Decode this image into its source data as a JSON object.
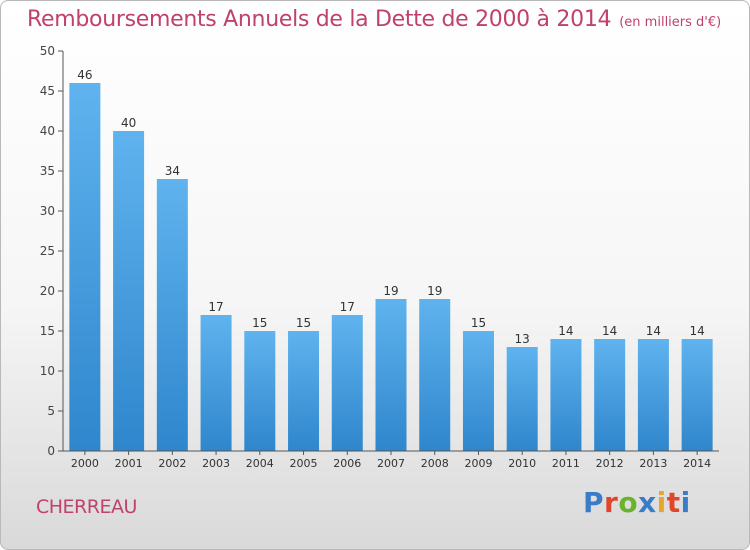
{
  "chart_data": {
    "type": "bar",
    "title": "Remboursements Annuels de la Dette de 2000 à 2014",
    "unit_label": "(en milliers d'€)",
    "categories": [
      "2000",
      "2001",
      "2002",
      "2003",
      "2004",
      "2005",
      "2006",
      "2007",
      "2008",
      "2009",
      "2010",
      "2011",
      "2012",
      "2013",
      "2014"
    ],
    "values": [
      46,
      40,
      34,
      17,
      15,
      15,
      17,
      19,
      19,
      15,
      13,
      14,
      14,
      14,
      14
    ],
    "xlabel": "",
    "ylabel": "",
    "ylim": [
      0,
      50
    ],
    "yticks": [
      0,
      5,
      10,
      15,
      20,
      25,
      30,
      35,
      40,
      45,
      50
    ],
    "grid": false,
    "legend": "none",
    "bar_color": "#2f86cc",
    "bar_color_light": "#5fb3ee"
  },
  "footer": {
    "subject": "CHERREAU",
    "brand_letters": [
      "P",
      "r",
      "o",
      "x",
      "i",
      "t",
      "i"
    ],
    "brand_colors": [
      "#3a7cc8",
      "#e0462c",
      "#6ab42d",
      "#3a7cc8",
      "#e9a52a",
      "#e0462c",
      "#3a7cc8"
    ]
  }
}
